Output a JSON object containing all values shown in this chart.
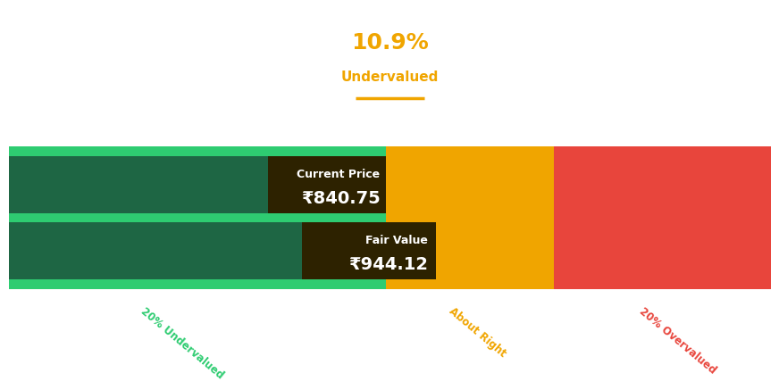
{
  "title_percentage": "10.9%",
  "title_label": "Undervalued",
  "title_color": "#F0A500",
  "current_price_label": "Current Price",
  "current_price_value": "₹840.75",
  "fair_value_label": "Fair Value",
  "fair_value_value": "₹944.12",
  "bg_color": "#ffffff",
  "bar_green_light": "#2ECC71",
  "bar_green_dark": "#1E6644",
  "bar_orange": "#F0A500",
  "bar_red": "#E8453C",
  "undervalued_label": "20% Undervalued",
  "undervalued_label_color": "#2ECC71",
  "about_right_label": "About Right",
  "about_right_label_color": "#F0A500",
  "overvalued_label": "20% Overvalued",
  "overvalued_label_color": "#E8453C",
  "zone_boundary_1": 0.495,
  "zone_boundary_2": 0.56,
  "zone_boundary_3": 0.715,
  "annotation_box_color": "#2D2200",
  "annotation_text_color": "#ffffff",
  "underline_color": "#F0A500"
}
